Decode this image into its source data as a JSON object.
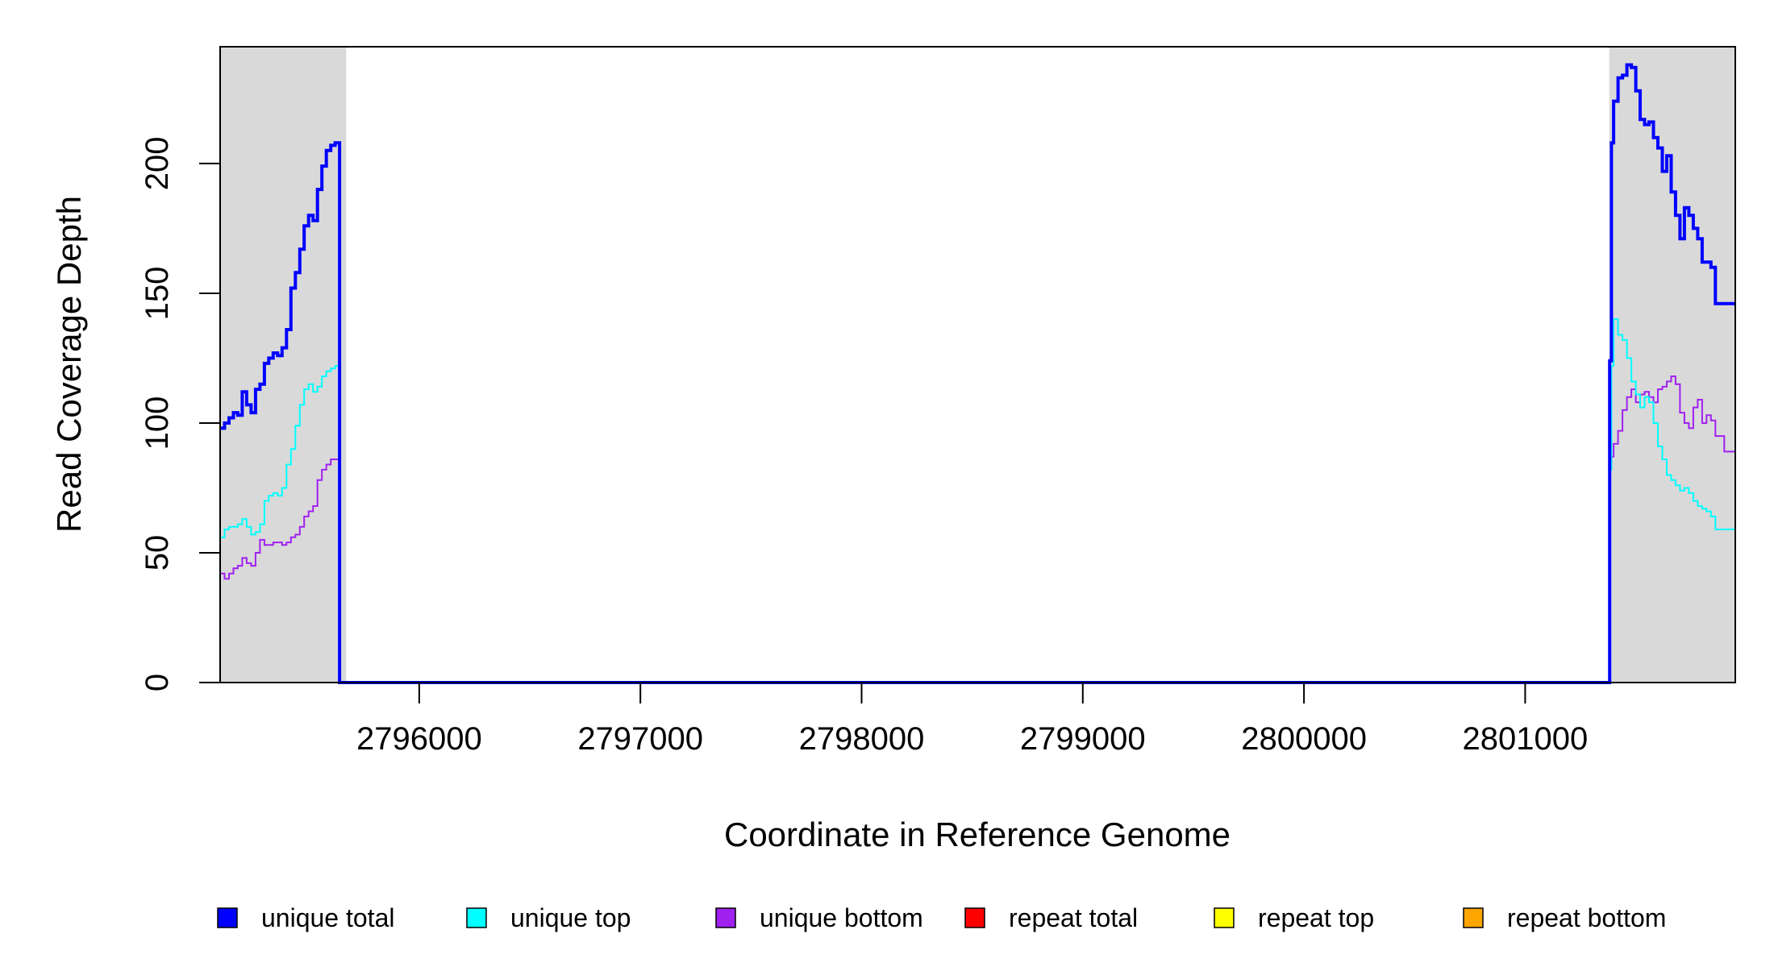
{
  "chart_data": {
    "type": "line",
    "line_style": "step",
    "xlabel": "Coordinate in Reference Genome",
    "ylabel": "Read Coverage Depth",
    "xlim": [
      2795100,
      2801950
    ],
    "ylim": [
      0,
      245
    ],
    "x_ticks": [
      2796000,
      2797000,
      2798000,
      2799000,
      2800000,
      2801000
    ],
    "y_ticks": [
      0,
      50,
      100,
      150,
      200
    ],
    "x_tick_labels": [
      "2796000",
      "2797000",
      "2798000",
      "2799000",
      "2800000",
      "2801000"
    ],
    "y_tick_labels": [
      "0",
      "50",
      "100",
      "150",
      "200"
    ],
    "shaded_regions": [
      {
        "from": 2795100,
        "to": 2795670,
        "color": "#d9d9d9"
      },
      {
        "from": 2801380,
        "to": 2801950,
        "color": "#d9d9d9"
      }
    ],
    "legend_position": "bottom",
    "series": [
      {
        "name": "unique total",
        "color": "#0000ff",
        "width": 4,
        "x": [
          2795100,
          2795120,
          2795140,
          2795160,
          2795180,
          2795200,
          2795220,
          2795240,
          2795260,
          2795280,
          2795300,
          2795320,
          2795340,
          2795360,
          2795380,
          2795400,
          2795420,
          2795440,
          2795460,
          2795480,
          2795500,
          2795520,
          2795540,
          2795560,
          2795580,
          2795600,
          2795620,
          2795640,
          2795655,
          2795668,
          2795675,
          2801375,
          2801382,
          2801390,
          2801400,
          2801420,
          2801440,
          2801460,
          2801480,
          2801500,
          2801520,
          2801540,
          2801560,
          2801580,
          2801600,
          2801620,
          2801640,
          2801660,
          2801680,
          2801700,
          2801720,
          2801740,
          2801760,
          2801780,
          2801800,
          2801820,
          2801840,
          2801860,
          2801880,
          2801900,
          2801920,
          2801950
        ],
        "values": [
          98,
          100,
          102,
          104,
          103,
          112,
          107,
          104,
          113,
          115,
          123,
          125,
          127,
          126,
          129,
          136,
          152,
          158,
          167,
          176,
          180,
          178,
          190,
          199,
          205,
          207,
          208,
          0,
          0,
          0,
          0,
          0,
          124,
          208,
          224,
          233,
          234,
          238,
          237,
          228,
          217,
          215,
          216,
          210,
          206,
          197,
          203,
          189,
          180,
          171,
          183,
          180,
          175,
          171,
          162,
          162,
          160,
          146,
          146,
          146,
          146,
          146
        ]
      },
      {
        "name": "unique top",
        "color": "#00ffff",
        "width": 2,
        "x": [
          2795100,
          2795120,
          2795140,
          2795160,
          2795180,
          2795200,
          2795220,
          2795240,
          2795260,
          2795280,
          2795300,
          2795320,
          2795340,
          2795360,
          2795380,
          2795400,
          2795420,
          2795440,
          2795460,
          2795480,
          2795500,
          2795520,
          2795540,
          2795560,
          2795580,
          2795600,
          2795620,
          2795640,
          2795655,
          2795668,
          2795675,
          2801375,
          2801382,
          2801390,
          2801400,
          2801420,
          2801440,
          2801460,
          2801480,
          2801500,
          2801520,
          2801540,
          2801560,
          2801580,
          2801600,
          2801620,
          2801640,
          2801660,
          2801680,
          2801700,
          2801720,
          2801740,
          2801760,
          2801780,
          2801800,
          2801820,
          2801840,
          2801860,
          2801880,
          2801900,
          2801920,
          2801950
        ],
        "values": [
          56,
          59,
          60,
          60,
          61,
          63,
          60,
          57,
          58,
          61,
          70,
          72,
          73,
          72,
          75,
          84,
          90,
          99,
          107,
          113,
          115,
          112,
          114,
          118,
          120,
          121,
          122,
          0,
          0,
          0,
          0,
          0,
          82,
          122,
          140,
          134,
          132,
          125,
          116,
          111,
          106,
          110,
          108,
          100,
          91,
          86,
          80,
          78,
          76,
          74,
          75,
          73,
          70,
          68,
          67,
          66,
          64,
          59,
          59,
          59,
          59,
          59
        ]
      },
      {
        "name": "unique bottom",
        "color": "#a020f0",
        "width": 2,
        "x": [
          2795100,
          2795120,
          2795140,
          2795160,
          2795180,
          2795200,
          2795220,
          2795240,
          2795260,
          2795280,
          2795300,
          2795320,
          2795340,
          2795360,
          2795380,
          2795400,
          2795420,
          2795440,
          2795460,
          2795480,
          2795500,
          2795520,
          2795540,
          2795560,
          2795580,
          2795600,
          2795620,
          2795640,
          2795655,
          2795668,
          2795675,
          2801375,
          2801382,
          2801390,
          2801400,
          2801420,
          2801440,
          2801460,
          2801480,
          2801500,
          2801520,
          2801540,
          2801560,
          2801580,
          2801600,
          2801620,
          2801640,
          2801660,
          2801680,
          2801700,
          2801720,
          2801740,
          2801760,
          2801780,
          2801800,
          2801820,
          2801840,
          2801860,
          2801880,
          2801900,
          2801920,
          2801950
        ],
        "values": [
          42,
          40,
          42,
          44,
          45,
          48,
          46,
          45,
          50,
          55,
          53,
          53,
          54,
          54,
          53,
          54,
          56,
          57,
          60,
          64,
          66,
          68,
          78,
          82,
          84,
          86,
          86,
          0,
          0,
          0,
          0,
          0,
          84,
          87,
          92,
          97,
          105,
          110,
          113,
          108,
          111,
          112,
          110,
          108,
          113,
          114,
          116,
          118,
          115,
          104,
          100,
          98,
          106,
          109,
          100,
          103,
          101,
          95,
          95,
          89,
          89,
          89
        ]
      },
      {
        "name": "repeat total",
        "color": "#ff0000",
        "width": 2,
        "x": [
          2795100,
          2801950
        ],
        "values": [
          0,
          0
        ]
      },
      {
        "name": "repeat top",
        "color": "#ffff00",
        "width": 2,
        "x": [
          2795100,
          2801950
        ],
        "values": [
          0,
          0
        ]
      },
      {
        "name": "repeat bottom",
        "color": "#ffa500",
        "width": 2,
        "x": [
          2795100,
          2801950
        ],
        "values": [
          0,
          0
        ]
      }
    ]
  }
}
